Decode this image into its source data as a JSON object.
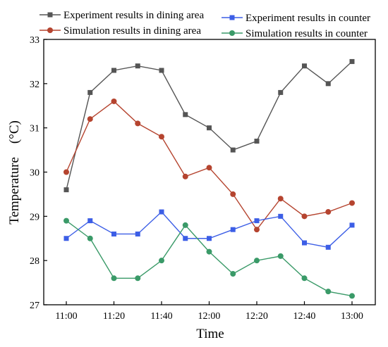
{
  "chart_data": {
    "type": "line",
    "xlabel": "Time",
    "ylabel": "Temperature　(°C)",
    "ylim": [
      27,
      33
    ],
    "yticks": [
      "27",
      "28",
      "29",
      "30",
      "31",
      "32",
      "33"
    ],
    "x": [
      "11:00",
      "11:10",
      "11:20",
      "11:30",
      "11:40",
      "11:50",
      "12:00",
      "12:10",
      "12:20",
      "12:30",
      "12:40",
      "12:50",
      "13:00"
    ],
    "xtick_labels": [
      "11:00",
      "11:20",
      "11:40",
      "12:00",
      "12:20",
      "12:40",
      "13:00"
    ],
    "legend_placement": "top",
    "grid": false,
    "series": [
      {
        "name": "Experiment results in dining area",
        "color": "#555555",
        "marker": "square",
        "values": [
          29.6,
          31.8,
          32.3,
          32.4,
          32.3,
          31.3,
          31.0,
          30.5,
          30.7,
          31.8,
          32.4,
          32.0,
          32.5
        ]
      },
      {
        "name": "Simulation results in dining area",
        "color": "#b5442f",
        "marker": "circle",
        "values": [
          30.0,
          31.2,
          31.6,
          31.1,
          30.8,
          29.9,
          30.1,
          29.5,
          28.7,
          29.4,
          29.0,
          29.1,
          29.3
        ]
      },
      {
        "name": "Experiment results in counter",
        "color": "#3c5ee6",
        "marker": "square",
        "values": [
          28.5,
          28.9,
          28.6,
          28.6,
          29.1,
          28.5,
          28.5,
          28.7,
          28.9,
          29.0,
          28.4,
          28.3,
          28.8
        ]
      },
      {
        "name": "Simulation results in counter",
        "color": "#3a9a68",
        "marker": "circle",
        "values": [
          28.9,
          28.5,
          27.6,
          27.6,
          28.0,
          28.8,
          28.2,
          27.7,
          28.0,
          28.1,
          27.6,
          27.3,
          27.2
        ]
      }
    ]
  }
}
